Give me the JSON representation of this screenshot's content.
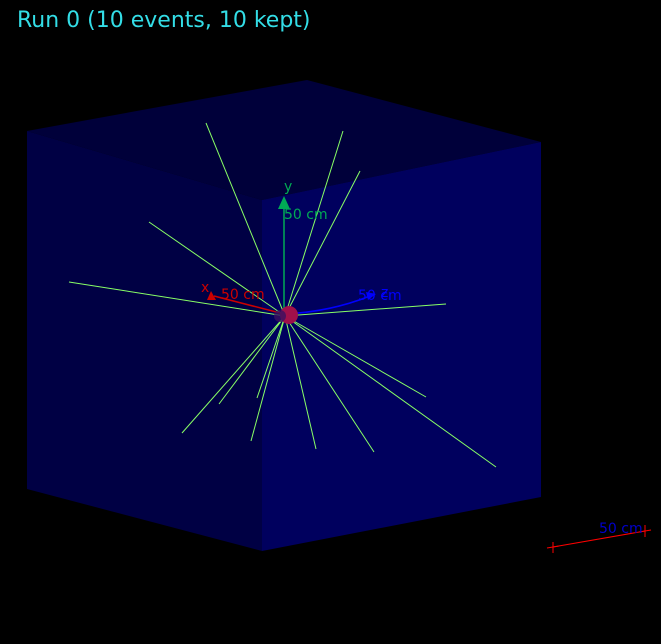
{
  "title": "Run 0 (10 events, 10 kept)",
  "axes": {
    "x": {
      "name": "x",
      "scale_label": "50 cm",
      "color": "#cc0000"
    },
    "y": {
      "name": "y",
      "scale_label": "50 cm",
      "color": "#00aa55"
    },
    "z": {
      "name": "z",
      "scale_label": "50 cm",
      "color": "#0000ff"
    }
  },
  "scale_bar": {
    "label": "50 cm",
    "label_color": "#0000cc",
    "line_color": "#ff0000"
  },
  "colors": {
    "background": "#000000",
    "title": "#33dde6",
    "world_volume": "#000066",
    "trajectory": "#88ff66",
    "vertex": "#a0104a"
  }
}
